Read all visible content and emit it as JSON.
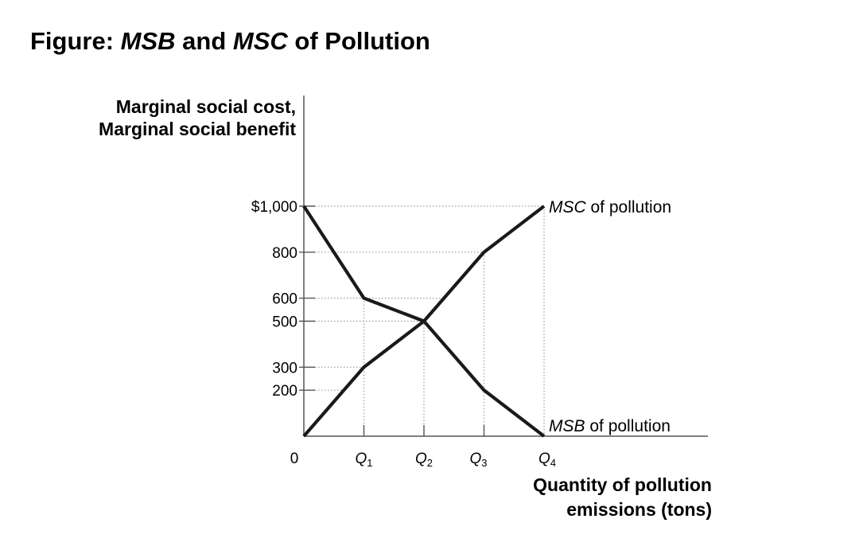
{
  "chart_data": {
    "type": "line",
    "title_prefix": "Figure: ",
    "title_msb": "MSB",
    "title_and": " and ",
    "title_msc": "MSC",
    "title_suffix": " of Pollution",
    "ylabel_line1": "Marginal social cost,",
    "ylabel_line2": "Marginal social benefit",
    "xlabel_line1": "Quantity of pollution",
    "xlabel_line2": "emissions (tons)",
    "ylim": [
      0,
      1000
    ],
    "xlim": [
      0,
      4
    ],
    "origin_label": "0",
    "y_ticks": [
      {
        "value": 1000,
        "label": "$1,000"
      },
      {
        "value": 800,
        "label": "800"
      },
      {
        "value": 600,
        "label": "600"
      },
      {
        "value": 500,
        "label": "500"
      },
      {
        "value": 300,
        "label": "300"
      },
      {
        "value": 200,
        "label": "200"
      }
    ],
    "x_ticks": [
      {
        "value": 1,
        "base": "Q",
        "sub": "1"
      },
      {
        "value": 2,
        "base": "Q",
        "sub": "2"
      },
      {
        "value": 3,
        "base": "Q",
        "sub": "3"
      },
      {
        "value": 4,
        "base": "Q",
        "sub": "4"
      }
    ],
    "series": [
      {
        "key": "msc",
        "label_italic": "MSC",
        "label_rest": " of pollution",
        "x": [
          0,
          1,
          2,
          3,
          4
        ],
        "y": [
          0,
          300,
          500,
          800,
          1000
        ]
      },
      {
        "key": "msb",
        "label_italic": "MSB",
        "label_rest": " of pollution",
        "x": [
          0,
          1,
          2,
          3,
          4
        ],
        "y": [
          1000,
          600,
          500,
          200,
          0
        ]
      }
    ],
    "grid": "dotted reference lines at Q values and y tick values",
    "line_color": "#1a1a1a",
    "grid_color": "#9a9a9a"
  }
}
